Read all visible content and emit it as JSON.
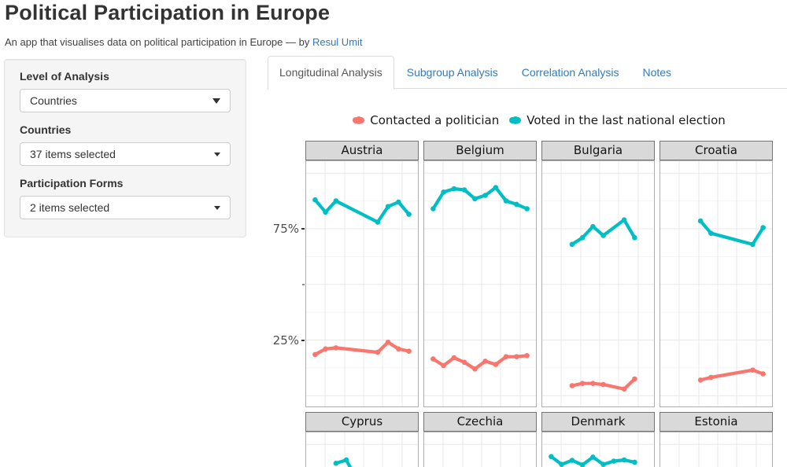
{
  "header": {
    "title": "Political Participation in Europe",
    "subtitle_prefix": "An app that visualises data on political participation in Europe — by ",
    "subtitle_link": "Resul Umit"
  },
  "sidebar": {
    "controls": [
      {
        "label": "Level of Analysis",
        "value": "Countries",
        "caret": "big"
      },
      {
        "label": "Countries",
        "value": "37 items selected",
        "caret": "small"
      },
      {
        "label": "Participation Forms",
        "value": "2 items selected",
        "caret": "small"
      }
    ]
  },
  "tabs": [
    {
      "label": "Longitudinal Analysis",
      "active": true
    },
    {
      "label": "Subgroup Analysis",
      "active": false
    },
    {
      "label": "Correlation Analysis",
      "active": false
    },
    {
      "label": "Notes",
      "active": false
    }
  ],
  "chart_data": {
    "type": "line",
    "legend_position": "top",
    "grid": true,
    "x_range": [
      2002,
      2020
    ],
    "ylim": [
      0,
      100
    ],
    "y_axis": {
      "ticks": [
        {
          "value": 75,
          "label": "75%"
        },
        {
          "value": 50,
          "label": ""
        },
        {
          "value": 25,
          "label": "25%"
        }
      ]
    },
    "legend": [
      {
        "label": "Contacted a politician",
        "series_key": "contacted",
        "color": "#F8766D"
      },
      {
        "label": "Voted in the last national election",
        "series_key": "voted",
        "color": "#00BFC4"
      }
    ],
    "facets": [
      {
        "name": "Austria",
        "voted": [
          [
            2002,
            88
          ],
          [
            2004,
            82.5
          ],
          [
            2006,
            87.5
          ],
          [
            2014,
            78
          ],
          [
            2016,
            85
          ],
          [
            2018,
            87
          ],
          [
            2020,
            81.5
          ]
        ],
        "contacted": [
          [
            2002,
            18.5
          ],
          [
            2004,
            21
          ],
          [
            2006,
            21.5
          ],
          [
            2014,
            19.5
          ],
          [
            2016,
            24
          ],
          [
            2018,
            21
          ],
          [
            2020,
            20
          ]
        ]
      },
      {
        "name": "Belgium",
        "voted": [
          [
            2002,
            84
          ],
          [
            2004,
            91.5
          ],
          [
            2006,
            93
          ],
          [
            2008,
            92.5
          ],
          [
            2010,
            88.5
          ],
          [
            2012,
            90
          ],
          [
            2014,
            93.5
          ],
          [
            2016,
            87.5
          ],
          [
            2018,
            86
          ],
          [
            2020,
            84
          ]
        ],
        "contacted": [
          [
            2002,
            16.5
          ],
          [
            2004,
            13.5
          ],
          [
            2006,
            17
          ],
          [
            2008,
            15
          ],
          [
            2010,
            12
          ],
          [
            2012,
            15.5
          ],
          [
            2014,
            14
          ],
          [
            2016,
            17.5
          ],
          [
            2018,
            17.5
          ],
          [
            2020,
            18
          ]
        ]
      },
      {
        "name": "Bulgaria",
        "voted": [
          [
            2006,
            68
          ],
          [
            2008,
            71
          ],
          [
            2010,
            76
          ],
          [
            2012,
            72
          ],
          [
            2016,
            79
          ],
          [
            2018,
            71
          ]
        ],
        "contacted": [
          [
            2006,
            4.5
          ],
          [
            2008,
            5.5
          ],
          [
            2010,
            5.5
          ],
          [
            2012,
            5
          ],
          [
            2016,
            3
          ],
          [
            2018,
            7.5
          ]
        ]
      },
      {
        "name": "Croatia",
        "voted": [
          [
            2008,
            78.5
          ],
          [
            2010,
            73
          ],
          [
            2018,
            68
          ],
          [
            2020,
            75.5
          ]
        ],
        "contacted": [
          [
            2008,
            7
          ],
          [
            2010,
            8.2
          ],
          [
            2018,
            11.5
          ],
          [
            2020,
            9.8
          ]
        ]
      },
      {
        "name": "Cyprus",
        "voted": [
          [
            2006,
            91.5
          ],
          [
            2008,
            93
          ],
          [
            2010,
            84
          ]
        ],
        "contacted": []
      },
      {
        "name": "Czechia",
        "voted": [],
        "contacted": []
      },
      {
        "name": "Denmark",
        "voted": [
          [
            2002,
            94.5
          ],
          [
            2004,
            91
          ],
          [
            2006,
            92.8
          ],
          [
            2008,
            90.8
          ],
          [
            2010,
            94.3
          ],
          [
            2012,
            91
          ],
          [
            2014,
            92.5
          ],
          [
            2016,
            93
          ],
          [
            2018,
            92
          ]
        ],
        "contacted": []
      },
      {
        "name": "Estonia",
        "voted": [],
        "contacted": []
      }
    ]
  }
}
